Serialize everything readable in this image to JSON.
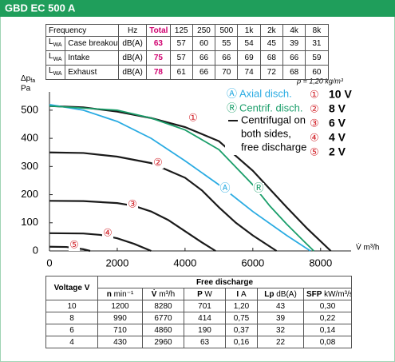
{
  "header": {
    "title": "GBD EC 500 A"
  },
  "noise_table": {
    "header": [
      "Frequency",
      "Hz",
      "Total",
      "125",
      "250",
      "500",
      "1k",
      "2k",
      "4k",
      "8k"
    ],
    "level_symbol": "L",
    "level_subscript": "WA",
    "rows": [
      {
        "label": "Case breakout",
        "unit": "dB(A)",
        "values": [
          63,
          57,
          60,
          55,
          54,
          45,
          39,
          31
        ]
      },
      {
        "label": "Intake",
        "unit": "dB(A)",
        "values": [
          75,
          57,
          66,
          66,
          69,
          68,
          66,
          59
        ]
      },
      {
        "label": "Exhaust",
        "unit": "dB(A)",
        "values": [
          78,
          61,
          66,
          70,
          74,
          72,
          68,
          60
        ]
      }
    ]
  },
  "chart_data": {
    "type": "line",
    "y_label": "Δp",
    "y_label_subscript": "fa",
    "y_unit": "Pa",
    "x_label": "V̇ m³/h",
    "density_note": "ρ = 1,20 kg/m³",
    "xlim": [
      0,
      8900
    ],
    "ylim": [
      0,
      565
    ],
    "xticks": [
      0,
      2000,
      4000,
      6000,
      8000
    ],
    "yticks": [
      0,
      100,
      200,
      300,
      400,
      500
    ],
    "grid": false,
    "legend_note": [
      "Centrifugal on",
      "both sides,",
      "free discharge"
    ],
    "series": [
      {
        "name": "10 V",
        "marker": "①",
        "color": "#1a1a1a",
        "x": [
          0,
          1000,
          2000,
          3000,
          4000,
          5000,
          6000,
          7000,
          7600,
          8300
        ],
        "values": [
          515,
          510,
          495,
          472,
          440,
          390,
          285,
          155,
          80,
          0
        ]
      },
      {
        "name": "8 V",
        "marker": "②",
        "color": "#1a1a1a",
        "x": [
          0,
          1000,
          2000,
          3000,
          4000,
          4500,
          5000,
          5500,
          6000,
          6700
        ],
        "values": [
          350,
          348,
          335,
          312,
          260,
          215,
          155,
          100,
          55,
          0
        ]
      },
      {
        "name": "6 V",
        "marker": "③",
        "color": "#1a1a1a",
        "x": [
          0,
          1000,
          2000,
          2500,
          3000,
          3500,
          4000,
          4500,
          4900
        ],
        "values": [
          178,
          177,
          170,
          160,
          140,
          110,
          70,
          30,
          0
        ]
      },
      {
        "name": "4 V",
        "marker": "④",
        "color": "#1a1a1a",
        "x": [
          0,
          1000,
          1500,
          2000,
          2500,
          3000
        ],
        "values": [
          63,
          62,
          57,
          45,
          25,
          0
        ]
      },
      {
        "name": "2 V",
        "marker": "⑤",
        "color": "#1a1a1a",
        "x": [
          0,
          500,
          1000,
          1200
        ],
        "values": [
          15,
          14,
          6,
          0
        ]
      },
      {
        "name": "Axial disch.",
        "marker": "Ⓐ",
        "color": "#29abe2",
        "x": [
          0,
          1000,
          2000,
          3000,
          4000,
          5000,
          6000,
          7000,
          7700
        ],
        "values": [
          520,
          500,
          460,
          400,
          320,
          235,
          140,
          55,
          0
        ]
      },
      {
        "name": "Centrif. disch.",
        "marker": "Ⓡ",
        "color": "#1a9e6a",
        "x": [
          0,
          2000,
          3000,
          4000,
          5000,
          6000,
          6500,
          7000,
          7500,
          7800
        ],
        "values": [
          515,
          500,
          472,
          430,
          360,
          235,
          160,
          95,
          35,
          0
        ]
      }
    ]
  },
  "performance_table": {
    "group_header": "Free discharge",
    "columns": [
      {
        "symbol": "Voltage",
        "unit": "V"
      },
      {
        "symbol": "n",
        "unit": "min⁻¹"
      },
      {
        "symbol": "V̇",
        "unit": "m³/h"
      },
      {
        "symbol": "P",
        "unit": "W"
      },
      {
        "symbol": "I",
        "unit": "A"
      },
      {
        "symbol": "Lp",
        "unit": "dB(A)"
      },
      {
        "symbol": "SFP",
        "unit": "kW/m³/s"
      }
    ],
    "rows": [
      [
        10,
        1200,
        8280,
        701,
        "1,20",
        43,
        "0,30"
      ],
      [
        8,
        990,
        6770,
        414,
        "0,75",
        39,
        "0,22"
      ],
      [
        6,
        710,
        4860,
        190,
        "0,37",
        32,
        "0,14"
      ],
      [
        4,
        430,
        2960,
        63,
        "0,16",
        22,
        "0,08"
      ]
    ]
  }
}
